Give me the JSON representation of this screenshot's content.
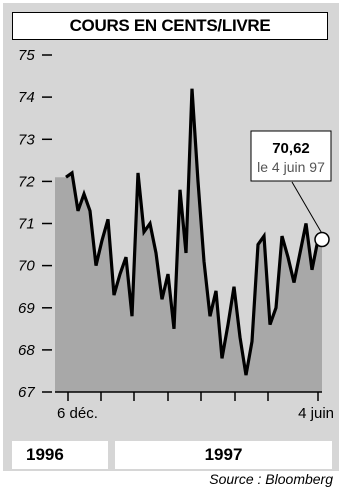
{
  "chart_data": {
    "type": "area",
    "title": "COURS EN CENTS/LIVRE",
    "yticks": [
      "75",
      "74",
      "73",
      "72",
      "71",
      "70",
      "69",
      "68",
      "67"
    ],
    "ylim": [
      67,
      75
    ],
    "xticks": [
      "6 déc.",
      "4 juin"
    ],
    "years": [
      "1996",
      "1997"
    ],
    "values": [
      72.1,
      72.2,
      71.3,
      71.7,
      71.3,
      70.0,
      70.6,
      71.1,
      69.3,
      69.8,
      70.2,
      68.8,
      72.2,
      70.8,
      71.0,
      70.3,
      69.2,
      69.8,
      68.5,
      71.8,
      70.3,
      74.2,
      72.0,
      70.1,
      68.8,
      69.4,
      67.8,
      68.6,
      69.5,
      68.3,
      67.4,
      68.2,
      70.5,
      70.7,
      68.6,
      69.0,
      70.7,
      70.2,
      69.6,
      70.3,
      71.0,
      69.9,
      70.62
    ],
    "annotation": {
      "value": "70,62",
      "date": "le 4 juin 97"
    },
    "source": "Source : Bloomberg",
    "colors": {
      "fill": "#a8a8a8",
      "panel": "#d6d6d6",
      "line": "#000000"
    }
  }
}
